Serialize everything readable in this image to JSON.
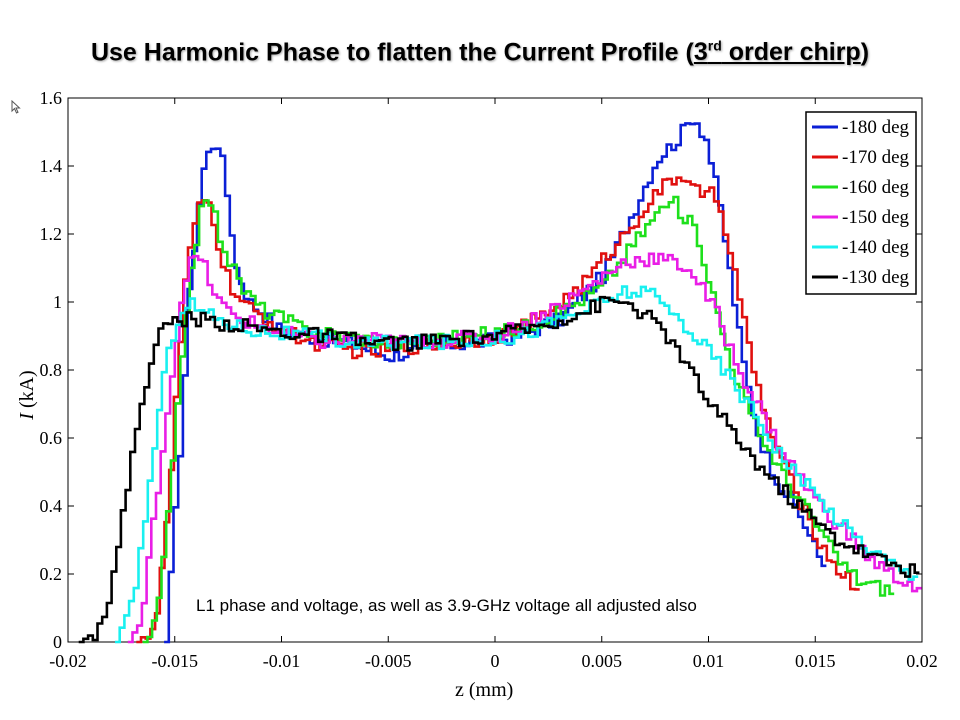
{
  "slide": {
    "title_main": "Use Harmonic Phase to flatten the Current Profile (",
    "title_num": "3",
    "title_sup": "rd",
    "title_tail": " order chirp",
    "title_end": ")"
  },
  "chart_data": {
    "type": "line",
    "xlabel": "z (mm)",
    "ylabel_italic": "I",
    "ylabel_rest": " (kA)",
    "xlim": [
      -0.02,
      0.02
    ],
    "ylim": [
      0,
      1.6
    ],
    "xticks": [
      -0.02,
      -0.015,
      -0.01,
      -0.005,
      0,
      0.005,
      0.01,
      0.015,
      0.02
    ],
    "xtick_labels": [
      "-0.02",
      "-0.015",
      "-0.01",
      "-0.005",
      "0",
      "0.005",
      "0.01",
      "0.015",
      "0.02"
    ],
    "yticks": [
      0,
      0.2,
      0.4,
      0.6,
      0.8,
      1,
      1.2,
      1.4,
      1.6
    ],
    "ytick_labels": [
      "0",
      "0.2",
      "0.4",
      "0.6",
      "0.8",
      "1",
      "1.2",
      "1.4",
      "1.6"
    ],
    "legend_position": "top-right",
    "annotation": "L1 phase and voltage, as well as 3.9-GHz voltage all adjusted also",
    "series": [
      {
        "name": "-180 deg",
        "color": "#0b1fd6",
        "x": [
          -0.0155,
          -0.0148,
          -0.0144,
          -0.0141,
          -0.0138,
          -0.0134,
          -0.013,
          -0.0126,
          -0.0122,
          -0.0116,
          -0.011,
          -0.0102,
          -0.009,
          -0.007,
          -0.005,
          -0.003,
          -0.001,
          0.001,
          0.003,
          0.005,
          0.0065,
          0.0075,
          0.0085,
          0.0092,
          0.0098,
          0.0104,
          0.011,
          0.0116,
          0.0122,
          0.0128,
          0.0134,
          0.014,
          0.0146,
          0.015,
          0.0154
        ],
        "y": [
          0.0,
          0.6,
          1.02,
          1.22,
          1.38,
          1.46,
          1.47,
          1.3,
          1.1,
          1.0,
          0.97,
          0.92,
          0.9,
          0.88,
          0.84,
          0.87,
          0.88,
          0.9,
          0.95,
          1.08,
          1.28,
          1.42,
          1.48,
          1.55,
          1.48,
          1.3,
          1.05,
          0.8,
          0.62,
          0.52,
          0.45,
          0.4,
          0.32,
          0.26,
          0.22
        ]
      },
      {
        "name": "-170 deg",
        "color": "#e0100f",
        "x": [
          -0.0168,
          -0.016,
          -0.0154,
          -0.015,
          -0.0146,
          -0.0142,
          -0.0138,
          -0.0134,
          -0.013,
          -0.0125,
          -0.012,
          -0.0114,
          -0.0106,
          -0.0095,
          -0.008,
          -0.006,
          -0.004,
          -0.002,
          0.0,
          0.002,
          0.004,
          0.006,
          0.0072,
          0.0082,
          0.009,
          0.0096,
          0.0102,
          0.0108,
          0.0114,
          0.012,
          0.0126,
          0.0132,
          0.0138,
          0.0146,
          0.0154,
          0.0162,
          0.017
        ],
        "y": [
          0.0,
          0.05,
          0.38,
          0.75,
          1.05,
          1.22,
          1.3,
          1.28,
          1.15,
          1.05,
          1.0,
          0.97,
          0.94,
          0.9,
          0.87,
          0.85,
          0.87,
          0.88,
          0.9,
          0.95,
          1.05,
          1.2,
          1.3,
          1.36,
          1.37,
          1.3,
          1.32,
          1.2,
          1.0,
          0.8,
          0.66,
          0.56,
          0.47,
          0.36,
          0.26,
          0.2,
          0.15
        ]
      },
      {
        "name": "-160 deg",
        "color": "#1ee01c",
        "x": [
          -0.0165,
          -0.016,
          -0.0155,
          -0.015,
          -0.0146,
          -0.0142,
          -0.0138,
          -0.0134,
          -0.013,
          -0.0124,
          -0.0118,
          -0.011,
          -0.01,
          -0.009,
          -0.007,
          -0.005,
          -0.003,
          -0.001,
          0.001,
          0.003,
          0.005,
          0.0065,
          0.0075,
          0.0082,
          0.0088,
          0.0094,
          0.01,
          0.0106,
          0.0112,
          0.0118,
          0.0124,
          0.013,
          0.0136,
          0.0142,
          0.015,
          0.016,
          0.017,
          0.018,
          0.0186
        ],
        "y": [
          0.0,
          0.05,
          0.3,
          0.65,
          0.95,
          1.15,
          1.28,
          1.3,
          1.2,
          1.1,
          1.03,
          0.98,
          0.95,
          0.92,
          0.9,
          0.88,
          0.89,
          0.9,
          0.92,
          0.97,
          1.05,
          1.18,
          1.26,
          1.3,
          1.25,
          1.2,
          1.05,
          0.9,
          0.78,
          0.68,
          0.6,
          0.54,
          0.47,
          0.42,
          0.34,
          0.24,
          0.18,
          0.16,
          0.15
        ]
      },
      {
        "name": "-150 deg",
        "color": "#e91ee6",
        "x": [
          -0.0172,
          -0.0166,
          -0.0162,
          -0.0158,
          -0.0154,
          -0.015,
          -0.0146,
          -0.0142,
          -0.0138,
          -0.0134,
          -0.013,
          -0.0124,
          -0.0116,
          -0.0106,
          -0.0095,
          -0.008,
          -0.006,
          -0.004,
          -0.002,
          0.0,
          0.002,
          0.004,
          0.006,
          0.0075,
          0.009,
          0.0102,
          0.0112,
          0.0122,
          0.013,
          0.0138,
          0.0146,
          0.0154,
          0.0164,
          0.0174,
          0.0184,
          0.0194,
          0.0198
        ],
        "y": [
          0.0,
          0.07,
          0.3,
          0.5,
          0.7,
          0.9,
          1.08,
          1.13,
          1.12,
          1.05,
          1.0,
          0.96,
          0.94,
          0.92,
          0.9,
          0.88,
          0.89,
          0.88,
          0.89,
          0.9,
          0.96,
          1.03,
          1.12,
          1.13,
          1.1,
          0.98,
          0.82,
          0.7,
          0.6,
          0.52,
          0.45,
          0.38,
          0.32,
          0.25,
          0.2,
          0.17,
          0.15
        ]
      },
      {
        "name": "-140 deg",
        "color": "#19f0f0",
        "x": [
          -0.0178,
          -0.0172,
          -0.0168,
          -0.0164,
          -0.016,
          -0.0156,
          -0.0152,
          -0.0148,
          -0.0144,
          -0.014,
          -0.0134,
          -0.0126,
          -0.0116,
          -0.0104,
          -0.009,
          -0.007,
          -0.005,
          -0.003,
          -0.001,
          0.001,
          0.003,
          0.005,
          0.006,
          0.007,
          0.008,
          0.009,
          0.01,
          0.011,
          0.012,
          0.013,
          0.0142,
          0.0154,
          0.0166,
          0.0178,
          0.019,
          0.0198
        ],
        "y": [
          0.0,
          0.08,
          0.22,
          0.4,
          0.6,
          0.78,
          0.9,
          0.98,
          1.0,
          0.98,
          0.96,
          0.94,
          0.92,
          0.91,
          0.9,
          0.88,
          0.88,
          0.88,
          0.89,
          0.9,
          0.95,
          1.0,
          1.03,
          1.03,
          0.98,
          0.92,
          0.85,
          0.77,
          0.68,
          0.58,
          0.48,
          0.4,
          0.32,
          0.26,
          0.21,
          0.18
        ]
      },
      {
        "name": "-130 deg",
        "color": "#000000",
        "x": [
          -0.0195,
          -0.0188,
          -0.0182,
          -0.0178,
          -0.0174,
          -0.017,
          -0.0166,
          -0.0162,
          -0.0158,
          -0.0154,
          -0.0148,
          -0.014,
          -0.013,
          -0.012,
          -0.01,
          -0.008,
          -0.006,
          -0.004,
          -0.002,
          0.0,
          0.002,
          0.004,
          0.005,
          0.006,
          0.007,
          0.008,
          0.009,
          0.01,
          0.011,
          0.012,
          0.013,
          0.014,
          0.015,
          0.016,
          0.017,
          0.018,
          0.019,
          0.0198
        ],
        "y": [
          0.0,
          0.03,
          0.12,
          0.25,
          0.42,
          0.58,
          0.72,
          0.83,
          0.9,
          0.94,
          0.95,
          0.95,
          0.94,
          0.93,
          0.91,
          0.9,
          0.88,
          0.88,
          0.89,
          0.9,
          0.93,
          0.97,
          1.0,
          1.0,
          0.96,
          0.9,
          0.8,
          0.7,
          0.62,
          0.54,
          0.47,
          0.41,
          0.35,
          0.3,
          0.27,
          0.24,
          0.22,
          0.2
        ]
      }
    ]
  }
}
